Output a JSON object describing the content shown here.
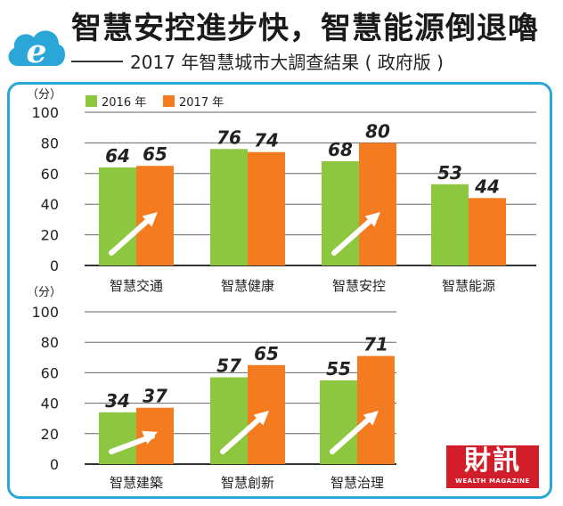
{
  "header": {
    "title": "智慧安控進步快，智慧能源倒退嚕",
    "subtitle": "2017 年智慧城市大調查結果 ( 政府版 )",
    "logo_letter": "e"
  },
  "publisher": {
    "name": "財訊",
    "tagline": "WEALTH MAGAZINE"
  },
  "colors": {
    "s2016": "#8dc63f",
    "s2017": "#f47b20",
    "frame": "#2aa7d8",
    "arrow": "#ffffff"
  },
  "chart_data": [
    {
      "type": "bar",
      "ylabel": "（分）",
      "ylim": [
        0,
        100
      ],
      "yticks": [
        "0",
        "20",
        "40",
        "60",
        "80",
        "100"
      ],
      "categories": [
        "智慧交通",
        "智慧健康",
        "智慧安控",
        "智慧能源"
      ],
      "series": [
        {
          "name": "2016 年",
          "values": [
            64,
            76,
            68,
            53
          ]
        },
        {
          "name": "2017 年",
          "values": [
            65,
            74,
            80,
            44
          ]
        }
      ],
      "legend": "top-left",
      "improvement_arrows": [
        true,
        false,
        true,
        false
      ]
    },
    {
      "type": "bar",
      "ylabel": "（分）",
      "ylim": [
        0,
        100
      ],
      "yticks": [
        "0",
        "20",
        "40",
        "60",
        "80",
        "100"
      ],
      "categories": [
        "智慧建築",
        "智慧創新",
        "智慧治理"
      ],
      "series": [
        {
          "name": "2016 年",
          "values": [
            34,
            57,
            55
          ]
        },
        {
          "name": "2017 年",
          "values": [
            37,
            65,
            71
          ]
        }
      ],
      "improvement_arrows": [
        true,
        true,
        true
      ]
    }
  ]
}
